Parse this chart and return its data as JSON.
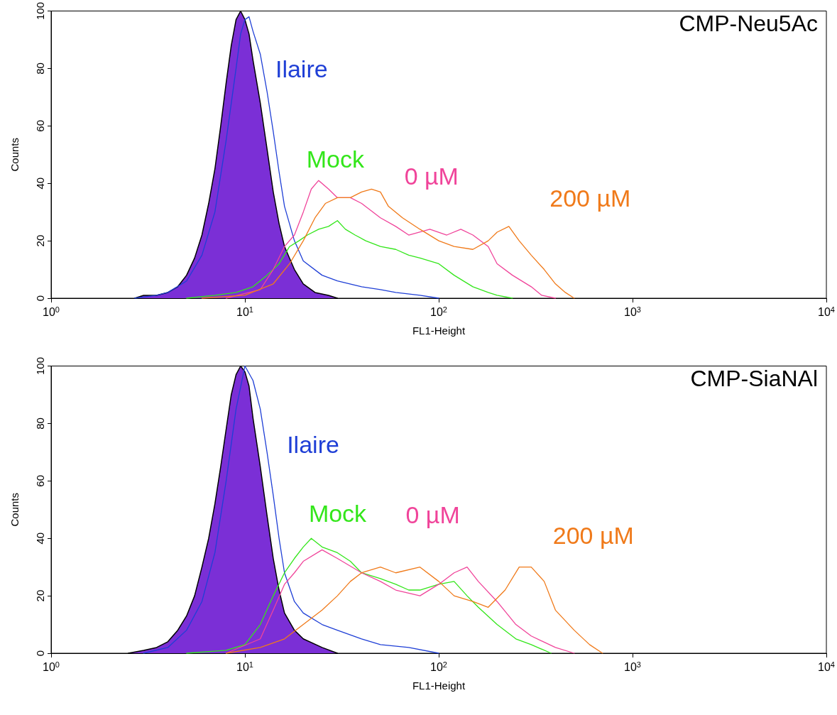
{
  "chart_data": [
    {
      "type": "line",
      "title": "CMP-Neu5Ac",
      "xlabel": "FL1-Height",
      "ylabel": "Counts",
      "log": "x",
      "grid": false,
      "legend": false,
      "marker": "none",
      "line_style": "solid",
      "xlim": [
        1,
        10000
      ],
      "ylim": [
        0,
        100
      ],
      "xticks": [
        {
          "value": 1,
          "label": "10$^{0}$"
        },
        {
          "value": 10,
          "label": "10$^{1}$"
        },
        {
          "value": 100,
          "label": "10$^{2}$"
        },
        {
          "value": 1000,
          "label": "10$^{3}$"
        },
        {
          "value": 10000,
          "label": "10$^{4}$"
        }
      ],
      "yticks": [
        0,
        20,
        40,
        60,
        80,
        100
      ],
      "series": [
        {
          "type": "area",
          "color": "#7b2fd6",
          "x": [
            2.7,
            3,
            3.5,
            4,
            4.5,
            5,
            5.5,
            6,
            6.5,
            7,
            7.5,
            8,
            8.5,
            9,
            9.5,
            10,
            10.5,
            11,
            12,
            13,
            14,
            15,
            16,
            18,
            20,
            23,
            27,
            30
          ],
          "values": [
            0,
            1,
            1,
            2,
            4,
            8,
            14,
            22,
            33,
            45,
            60,
            75,
            88,
            97,
            100,
            97,
            92,
            83,
            68,
            52,
            37,
            26,
            18,
            10,
            5,
            2,
            1,
            0
          ]
        },
        {
          "name": "Ilaire",
          "color": "#1f3fd6",
          "x": [
            2.7,
            3.5,
            4,
            5,
            6,
            7,
            8,
            9,
            9.5,
            10,
            10.5,
            11,
            12,
            13,
            14,
            15,
            16,
            18,
            20,
            25,
            30,
            40,
            50,
            60,
            80,
            100
          ],
          "values": [
            0,
            1,
            2,
            6,
            15,
            30,
            55,
            80,
            92,
            97,
            98,
            93,
            85,
            72,
            58,
            44,
            32,
            20,
            13,
            8,
            6,
            4,
            3,
            2,
            1,
            0
          ]
        },
        {
          "name": "Mock",
          "color": "#33e61a",
          "x": [
            5,
            7,
            9,
            11,
            13,
            15,
            17,
            19,
            21,
            24,
            27,
            30,
            33,
            37,
            42,
            50,
            60,
            70,
            80,
            100,
            120,
            150,
            180,
            200,
            240
          ],
          "values": [
            0,
            1,
            2,
            4,
            8,
            12,
            18,
            20,
            22,
            24,
            25,
            27,
            24,
            22,
            20,
            18,
            17,
            15,
            14,
            12,
            8,
            4,
            2,
            1,
            0
          ]
        },
        {
          "name": "0 µM",
          "color": "#f0449a",
          "x": [
            8,
            12,
            14,
            16,
            18,
            20,
            22,
            24,
            27,
            30,
            35,
            40,
            50,
            60,
            70,
            90,
            110,
            130,
            150,
            180,
            200,
            240,
            300,
            340,
            400
          ],
          "values": [
            0,
            3,
            10,
            18,
            22,
            30,
            38,
            41,
            38,
            35,
            35,
            33,
            28,
            25,
            22,
            24,
            22,
            24,
            22,
            18,
            12,
            8,
            4,
            1,
            0
          ]
        },
        {
          "name": "200 µM",
          "color": "#f07a1a",
          "x": [
            6,
            10,
            14,
            17,
            20,
            23,
            26,
            30,
            35,
            40,
            45,
            50,
            55,
            65,
            80,
            100,
            120,
            150,
            180,
            200,
            230,
            260,
            300,
            350,
            400,
            450,
            500
          ],
          "values": [
            0,
            1,
            5,
            12,
            20,
            28,
            33,
            35,
            35,
            37,
            38,
            37,
            32,
            28,
            24,
            20,
            18,
            17,
            20,
            23,
            25,
            20,
            15,
            10,
            5,
            2,
            0
          ]
        }
      ]
    },
    {
      "type": "line",
      "title": "CMP-SiaNAl",
      "xlabel": "FL1-Height",
      "ylabel": "Counts",
      "log": "x",
      "grid": false,
      "legend": false,
      "marker": "none",
      "line_style": "solid",
      "xlim": [
        1,
        10000
      ],
      "ylim": [
        0,
        100
      ],
      "xticks": [
        {
          "value": 1,
          "label": "10$^{0}$"
        },
        {
          "value": 10,
          "label": "10$^{1}$"
        },
        {
          "value": 100,
          "label": "10$^{2}$"
        },
        {
          "value": 1000,
          "label": "10$^{3}$"
        },
        {
          "value": 10000,
          "label": "10$^{4}$"
        }
      ],
      "yticks": [
        0,
        20,
        40,
        60,
        80,
        100
      ],
      "series": [
        {
          "type": "area",
          "color": "#7b2fd6",
          "x": [
            2.5,
            3,
            3.5,
            4,
            4.5,
            5,
            5.5,
            6,
            6.5,
            7,
            7.5,
            8,
            8.5,
            9,
            9.5,
            10,
            10.5,
            11,
            12,
            13,
            14,
            15,
            16,
            18,
            20,
            25,
            30
          ],
          "values": [
            0,
            1,
            2,
            4,
            8,
            13,
            20,
            30,
            40,
            52,
            65,
            78,
            90,
            97,
            100,
            98,
            93,
            82,
            65,
            48,
            33,
            22,
            14,
            8,
            5,
            2,
            0
          ]
        },
        {
          "name": "Ilaire",
          "color": "#1f3fd6",
          "x": [
            3,
            4,
            5,
            6,
            7,
            8,
            9,
            10,
            11,
            12,
            13,
            14,
            15,
            16,
            18,
            20,
            25,
            30,
            40,
            50,
            70,
            100
          ],
          "values": [
            0,
            2,
            8,
            18,
            35,
            60,
            85,
            100,
            95,
            85,
            70,
            55,
            40,
            28,
            18,
            14,
            10,
            8,
            5,
            3,
            2,
            0
          ]
        },
        {
          "name": "Mock",
          "color": "#33e61a",
          "x": [
            5,
            8,
            10,
            12,
            14,
            16,
            18,
            20,
            22,
            25,
            30,
            35,
            40,
            50,
            60,
            70,
            80,
            100,
            120,
            140,
            160,
            200,
            250,
            300,
            380
          ],
          "values": [
            0,
            1,
            3,
            10,
            20,
            28,
            33,
            37,
            40,
            37,
            35,
            32,
            28,
            26,
            24,
            22,
            22,
            24,
            25,
            20,
            16,
            10,
            5,
            3,
            0
          ]
        },
        {
          "name": "0 µM",
          "color": "#f0449a",
          "x": [
            8,
            12,
            14,
            16,
            18,
            20,
            25,
            30,
            40,
            50,
            60,
            80,
            100,
            120,
            140,
            160,
            200,
            250,
            300,
            400,
            500
          ],
          "values": [
            0,
            5,
            15,
            24,
            28,
            32,
            36,
            33,
            28,
            25,
            22,
            20,
            24,
            28,
            30,
            25,
            18,
            10,
            6,
            2,
            0
          ]
        },
        {
          "name": "200 µM",
          "color": "#f07a1a",
          "x": [
            8,
            12,
            16,
            20,
            25,
            30,
            35,
            40,
            50,
            60,
            80,
            100,
            120,
            150,
            180,
            220,
            260,
            300,
            350,
            400,
            500,
            600,
            700
          ],
          "values": [
            0,
            2,
            5,
            10,
            15,
            20,
            25,
            28,
            30,
            28,
            30,
            25,
            20,
            18,
            16,
            22,
            30,
            30,
            25,
            15,
            8,
            3,
            0
          ]
        }
      ]
    }
  ]
}
